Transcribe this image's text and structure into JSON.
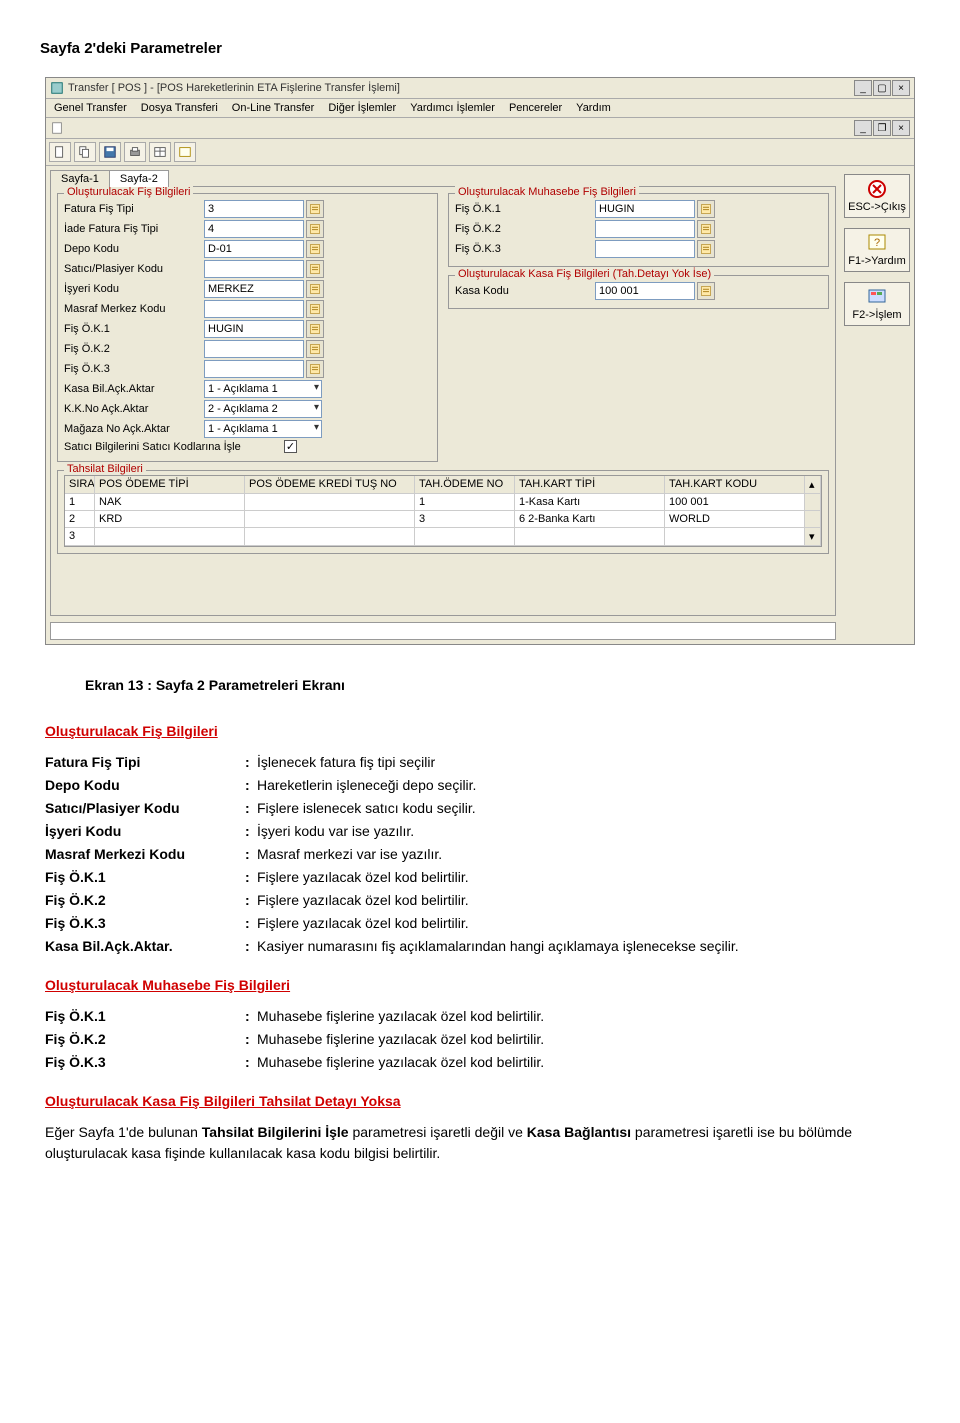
{
  "page": {
    "title": "Sayfa 2'deki Parametreler"
  },
  "window": {
    "title": "Transfer [ POS ]  - [POS Hareketlerinin ETA Fişlerine Transfer İşlemi]",
    "menus": [
      "Genel Transfer",
      "Dosya Transferi",
      "On-Line Transfer",
      "Diğer İşlemler",
      "Yardımcı İşlemler",
      "Pencereler",
      "Yardım"
    ],
    "tabs": [
      "Sayfa-1",
      "Sayfa-2"
    ],
    "side_buttons": {
      "esc": "ESC->Çıkış",
      "f1": "F1->Yardım",
      "f2": "F2->İşlem"
    },
    "groups": {
      "fis": {
        "legend": "Oluşturulacak Fiş Bilgileri",
        "rows": [
          {
            "label": "Fatura Fiş Tipi",
            "value": "3",
            "lookup": true
          },
          {
            "label": "İade Fatura Fiş Tipi",
            "value": "4",
            "lookup": true
          },
          {
            "label": "Depo Kodu",
            "value": "D-01",
            "lookup": true
          },
          {
            "label": "Satıcı/Plasiyer Kodu",
            "value": "",
            "lookup": true
          },
          {
            "label": "İşyeri Kodu",
            "value": "MERKEZ",
            "lookup": true
          },
          {
            "label": "Masraf Merkez Kodu",
            "value": "",
            "lookup": true
          },
          {
            "label": "Fiş Ö.K.1",
            "value": "HUGIN",
            "lookup": true
          },
          {
            "label": "Fiş Ö.K.2",
            "value": "",
            "lookup": true
          },
          {
            "label": "Fiş Ö.K.3",
            "value": "",
            "lookup": true
          }
        ],
        "combos": [
          {
            "label": "Kasa Bil.Açk.Aktar",
            "value": "1 - Açıklama 1"
          },
          {
            "label": "K.K.No Açk.Aktar",
            "value": "2 - Açıklama 2"
          },
          {
            "label": "Mağaza No Açk.Aktar",
            "value": "1 - Açıklama 1"
          }
        ],
        "check": {
          "label": "Satıcı Bilgilerini Satıcı Kodlarına İşle",
          "checked": true
        }
      },
      "muh": {
        "legend": "Oluşturulacak Muhasebe Fiş Bilgileri",
        "rows": [
          {
            "label": "Fiş Ö.K.1",
            "value": "HUGIN",
            "lookup": true
          },
          {
            "label": "Fiş Ö.K.2",
            "value": "",
            "lookup": true
          },
          {
            "label": "Fiş Ö.K.3",
            "value": "",
            "lookup": true
          }
        ]
      },
      "kasa": {
        "legend": "Oluşturulacak Kasa Fiş Bilgileri (Tah.Detayı Yok İse)",
        "rows": [
          {
            "label": "Kasa Kodu",
            "value": "100 001",
            "lookup": true
          }
        ]
      },
      "tahsilat": {
        "legend": "Tahsilat Bilgileri",
        "columns": [
          "SIRA",
          "POS ÖDEME TİPİ",
          "POS ÖDEME KREDİ TUŞ NO",
          "TAH.ÖDEME NO",
          "TAH.KART TİPİ",
          "TAH.KART KODU"
        ],
        "rows": [
          [
            "1",
            "NAK",
            "",
            "1",
            "1-Kasa Kartı",
            "100 001"
          ],
          [
            "2",
            "KRD",
            "",
            "3",
            "6 2-Banka Kartı",
            "WORLD"
          ],
          [
            "3",
            "",
            "",
            "",
            "",
            ""
          ]
        ]
      }
    }
  },
  "doc": {
    "caption": "Ekran 13 : Sayfa 2 Parametreleri Ekranı",
    "sec1_title": "Oluşturulacak Fiş Bilgileri",
    "sec1_defs": [
      [
        "Fatura Fiş Tipi",
        "İşlenecek fatura fiş tipi seçilir"
      ],
      [
        "Depo Kodu",
        "Hareketlerin işleneceği depo seçilir."
      ],
      [
        "Satıcı/Plasiyer Kodu",
        "Fişlere islenecek satıcı kodu seçilir."
      ],
      [
        "İşyeri Kodu",
        "İşyeri kodu var ise yazılır."
      ],
      [
        "Masraf Merkezi Kodu",
        "Masraf merkezi var ise yazılır."
      ],
      [
        "Fiş Ö.K.1",
        "Fişlere yazılacak özel kod belirtilir."
      ],
      [
        "Fiş Ö.K.2",
        "Fişlere yazılacak özel kod belirtilir."
      ],
      [
        "Fiş Ö.K.3",
        "Fişlere yazılacak özel kod belirtilir."
      ],
      [
        "Kasa Bil.Açk.Aktar.",
        "Kasiyer numarasını fiş açıklamalarından hangi açıklamaya işlenecekse seçilir."
      ]
    ],
    "sec2_title": "Oluşturulacak Muhasebe Fiş Bilgileri",
    "sec2_defs": [
      [
        "Fiş Ö.K.1",
        "Muhasebe fişlerine yazılacak özel kod belirtilir."
      ],
      [
        "Fiş Ö.K.2",
        "Muhasebe fişlerine yazılacak özel kod belirtilir."
      ],
      [
        "Fiş Ö.K.3",
        "Muhasebe fişlerine yazılacak özel kod belirtilir."
      ]
    ],
    "sec3_title": "Oluşturulacak Kasa Fiş Bilgileri Tahsilat Detayı Yoksa",
    "sec3_para_parts": {
      "p1": "Eğer Sayfa 1'de bulunan ",
      "b1": "Tahsilat Bilgilerini İşle",
      "p2": " parametresi işaretli değil ve ",
      "b2": "Kasa Bağlantısı",
      "p3": " parametresi işaretli ise bu bölümde oluşturulacak kasa fişinde kullanılacak kasa kodu bilgisi belirtilir."
    }
  }
}
